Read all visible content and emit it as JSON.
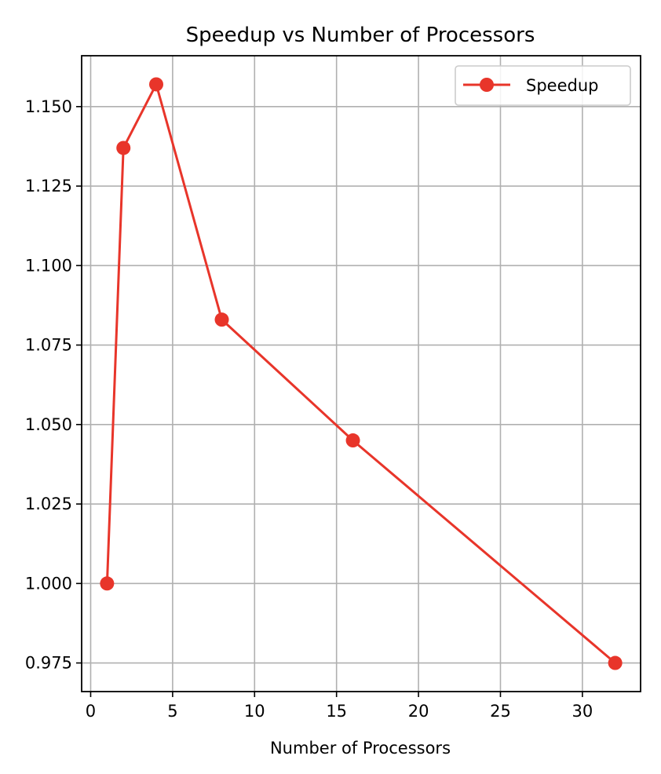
{
  "chart_data": {
    "type": "line",
    "title": "Speedup vs Number of Processors",
    "xlabel": "Number of Processors",
    "ylabel": "",
    "xlim": [
      -0.55,
      33.55
    ],
    "ylim": [
      0.966,
      1.166
    ],
    "xticks": [
      0,
      5,
      10,
      15,
      20,
      25,
      30
    ],
    "xtick_labels": [
      "0",
      "5",
      "10",
      "15",
      "20",
      "25",
      "30"
    ],
    "yticks": [
      0.975,
      1.0,
      1.025,
      1.05,
      1.075,
      1.1,
      1.125,
      1.15
    ],
    "ytick_labels": [
      "0.975",
      "1.000",
      "1.025",
      "1.050",
      "1.075",
      "1.100",
      "1.125",
      "1.150"
    ],
    "grid": true,
    "legend": {
      "position": "top-right",
      "entries": [
        "Speedup"
      ]
    },
    "series": [
      {
        "name": "Speedup",
        "color": "#e8352a",
        "marker": "circle",
        "x": [
          1,
          2,
          4,
          8,
          16,
          32
        ],
        "y": [
          1.0,
          1.137,
          1.157,
          1.083,
          1.045,
          0.975
        ]
      }
    ]
  }
}
